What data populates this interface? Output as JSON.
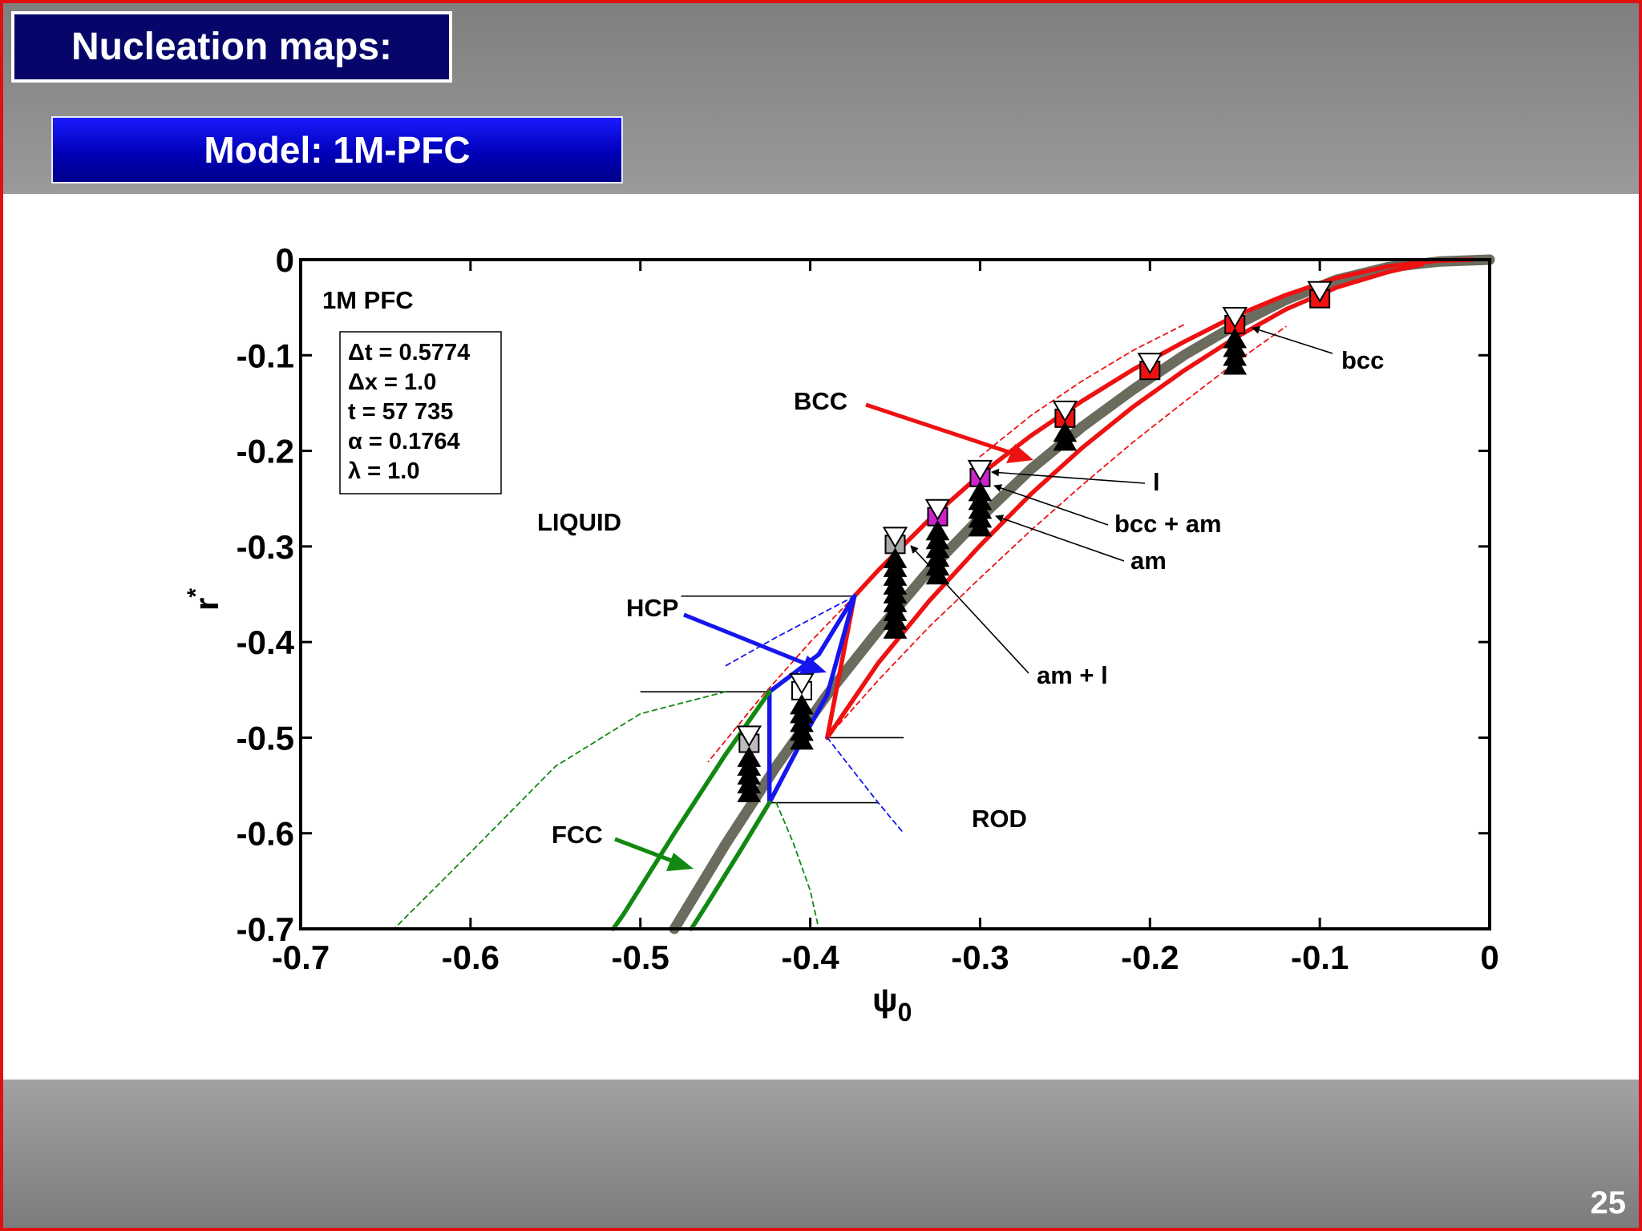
{
  "slide": {
    "title": "Nucleation maps:",
    "subtitle": "Model: 1M-PFC",
    "page_number": "25"
  },
  "colors": {
    "bcc": "#ee1111",
    "hcp": "#1515ee",
    "fcc": "#118811",
    "gray_curve": "#6b6b5e",
    "frame": "#e01010"
  },
  "chart_data": {
    "type": "line",
    "xlabel": "ψ",
    "xlabel_sub": "0",
    "ylabel": "r",
    "ylabel_sup": "*",
    "xlim": [
      -0.7,
      0
    ],
    "ylim": [
      -0.7,
      0
    ],
    "xticks": [
      -0.7,
      -0.6,
      -0.5,
      -0.4,
      -0.3,
      -0.2,
      -0.1,
      0
    ],
    "yticks": [
      0,
      -0.1,
      -0.2,
      -0.3,
      -0.4,
      -0.5,
      -0.6,
      -0.7
    ],
    "xtick_labels": [
      "-0.7",
      "-0.6",
      "-0.5",
      "-0.4",
      "-0.3",
      "-0.2",
      "-0.1",
      "0"
    ],
    "ytick_labels": [
      "0",
      "-0.1",
      "-0.2",
      "-0.3",
      "-0.4",
      "-0.5",
      "-0.6",
      "-0.7"
    ],
    "panel_label": "1M PFC",
    "params": [
      "Δt = 0.5774",
      "Δx = 1.0",
      "t = 57 735",
      "α = 0.1764",
      "λ = 1.0"
    ],
    "regions": [
      "LIQUID",
      "ROD"
    ],
    "phase_labels": [
      {
        "text": "BCC",
        "color": "#ee1111"
      },
      {
        "text": "HCP",
        "color": "#1515ee"
      },
      {
        "text": "FCC",
        "color": "#118811"
      }
    ],
    "annotations": [
      "bcc",
      "l",
      "bcc + am",
      "am",
      "am + l"
    ],
    "series": [
      {
        "color": "#6b6b5e",
        "style": "thick",
        "x": [
          -0.48,
          -0.45,
          -0.42,
          -0.39,
          -0.36,
          -0.33,
          -0.3,
          -0.27,
          -0.24,
          -0.21,
          -0.18,
          -0.15,
          -0.12,
          -0.09,
          -0.06,
          -0.03,
          0
        ],
        "y": [
          -0.7,
          -0.612,
          -0.53,
          -0.455,
          -0.388,
          -0.325,
          -0.27,
          -0.219,
          -0.175,
          -0.136,
          -0.1,
          -0.069,
          -0.042,
          -0.021,
          -0.008,
          -0.002,
          0
        ]
      },
      {
        "color": "#ee1111",
        "style": "solid",
        "x": [
          -0.374,
          -0.36,
          -0.33,
          -0.3,
          -0.27,
          -0.24,
          -0.21,
          -0.18,
          -0.15,
          -0.12,
          -0.09,
          -0.06,
          -0.03,
          -0.01
        ],
        "y": [
          -0.352,
          -0.325,
          -0.272,
          -0.225,
          -0.184,
          -0.148,
          -0.115,
          -0.086,
          -0.059,
          -0.037,
          -0.019,
          -0.007,
          -0.001,
          0
        ]
      },
      {
        "color": "#ee1111",
        "style": "solid",
        "x": [
          -0.39,
          -0.36,
          -0.33,
          -0.3,
          -0.27,
          -0.24,
          -0.21,
          -0.18,
          -0.15,
          -0.12,
          -0.09,
          -0.06,
          -0.04
        ],
        "y": [
          -0.5,
          -0.422,
          -0.357,
          -0.299,
          -0.245,
          -0.197,
          -0.154,
          -0.116,
          -0.082,
          -0.052,
          -0.029,
          -0.013,
          -0.005
        ]
      },
      {
        "color": "#ee1111",
        "style": "solid",
        "x": [
          -0.374,
          -0.39
        ],
        "y": [
          -0.352,
          -0.5
        ]
      },
      {
        "color": "#ee1111",
        "style": "dashed",
        "x": [
          -0.374,
          -0.4,
          -0.43,
          -0.46
        ],
        "y": [
          -0.352,
          -0.4,
          -0.46,
          -0.525
        ]
      },
      {
        "color": "#ee1111",
        "style": "dashed",
        "x": [
          -0.3,
          -0.27,
          -0.24,
          -0.21,
          -0.18
        ],
        "y": [
          -0.206,
          -0.163,
          -0.127,
          -0.095,
          -0.068
        ]
      },
      {
        "color": "#ee1111",
        "style": "dashed",
        "x": [
          -0.39,
          -0.36,
          -0.33,
          -0.3,
          -0.27,
          -0.24,
          -0.21,
          -0.18,
          -0.15,
          -0.12
        ],
        "y": [
          -0.5,
          -0.44,
          -0.384,
          -0.333,
          -0.283,
          -0.236,
          -0.191,
          -0.149,
          -0.108,
          -0.07
        ]
      },
      {
        "color": "#1515ee",
        "style": "solid",
        "x": [
          -0.374,
          -0.395,
          -0.424,
          -0.424,
          -0.404,
          -0.39,
          -0.374
        ],
        "y": [
          -0.352,
          -0.413,
          -0.452,
          -0.568,
          -0.5,
          -0.455,
          -0.352
        ]
      },
      {
        "color": "#1515ee",
        "style": "dashed",
        "x": [
          -0.374,
          -0.42,
          -0.45
        ],
        "y": [
          -0.352,
          -0.395,
          -0.425
        ]
      },
      {
        "color": "#1515ee",
        "style": "dashed",
        "x": [
          -0.39,
          -0.375,
          -0.36,
          -0.345
        ],
        "y": [
          -0.5,
          -0.534,
          -0.568,
          -0.6
        ]
      },
      {
        "color": "#118811",
        "style": "solid",
        "x": [
          -0.424,
          -0.45,
          -0.48,
          -0.51,
          -0.516
        ],
        "y": [
          -0.452,
          -0.518,
          -0.6,
          -0.685,
          -0.7
        ]
      },
      {
        "color": "#118811",
        "style": "solid",
        "x": [
          -0.424,
          -0.44,
          -0.46,
          -0.47
        ],
        "y": [
          -0.568,
          -0.615,
          -0.672,
          -0.7
        ]
      },
      {
        "color": "#118811",
        "style": "dashed",
        "x": [
          -0.45,
          -0.5,
          -0.55,
          -0.6,
          -0.645
        ],
        "y": [
          -0.452,
          -0.475,
          -0.53,
          -0.62,
          -0.7
        ]
      },
      {
        "color": "#118811",
        "style": "dashed",
        "x": [
          -0.42,
          -0.41,
          -0.4,
          -0.395
        ],
        "y": [
          -0.568,
          -0.61,
          -0.66,
          -0.7
        ]
      }
    ],
    "tie_lines": [
      {
        "x": [
          -0.476,
          -0.374
        ],
        "y": [
          -0.352,
          -0.352
        ]
      },
      {
        "x": [
          -0.5,
          -0.424
        ],
        "y": [
          -0.452,
          -0.452
        ]
      },
      {
        "x": [
          -0.39,
          -0.345
        ],
        "y": [
          -0.5,
          -0.5
        ]
      },
      {
        "x": [
          -0.424,
          -0.36
        ],
        "y": [
          -0.568,
          -0.568
        ]
      }
    ],
    "markers": [
      {
        "x": -0.1,
        "y": -0.035,
        "fill": "#ee1111",
        "stack": 0
      },
      {
        "x": -0.15,
        "y": -0.062,
        "fill": "#ee1111",
        "stack": 4
      },
      {
        "x": -0.2,
        "y": -0.11,
        "fill": "#ee1111",
        "stack": 0
      },
      {
        "x": -0.25,
        "y": -0.16,
        "fill": "#ee1111",
        "stack": 2
      },
      {
        "x": -0.3,
        "y": -0.222,
        "fill": "#cc22cc",
        "stack": 5
      },
      {
        "x": -0.325,
        "y": -0.263,
        "fill": "#cc22cc",
        "stack": 6
      },
      {
        "x": -0.35,
        "y": -0.292,
        "fill": "#aaaaaa",
        "stack": 9
      },
      {
        "x": -0.405,
        "y": -0.445,
        "fill": "#ffffff",
        "stack": 5
      },
      {
        "x": -0.436,
        "y": -0.5,
        "fill": "#bbbbbb",
        "stack": 5
      }
    ]
  }
}
